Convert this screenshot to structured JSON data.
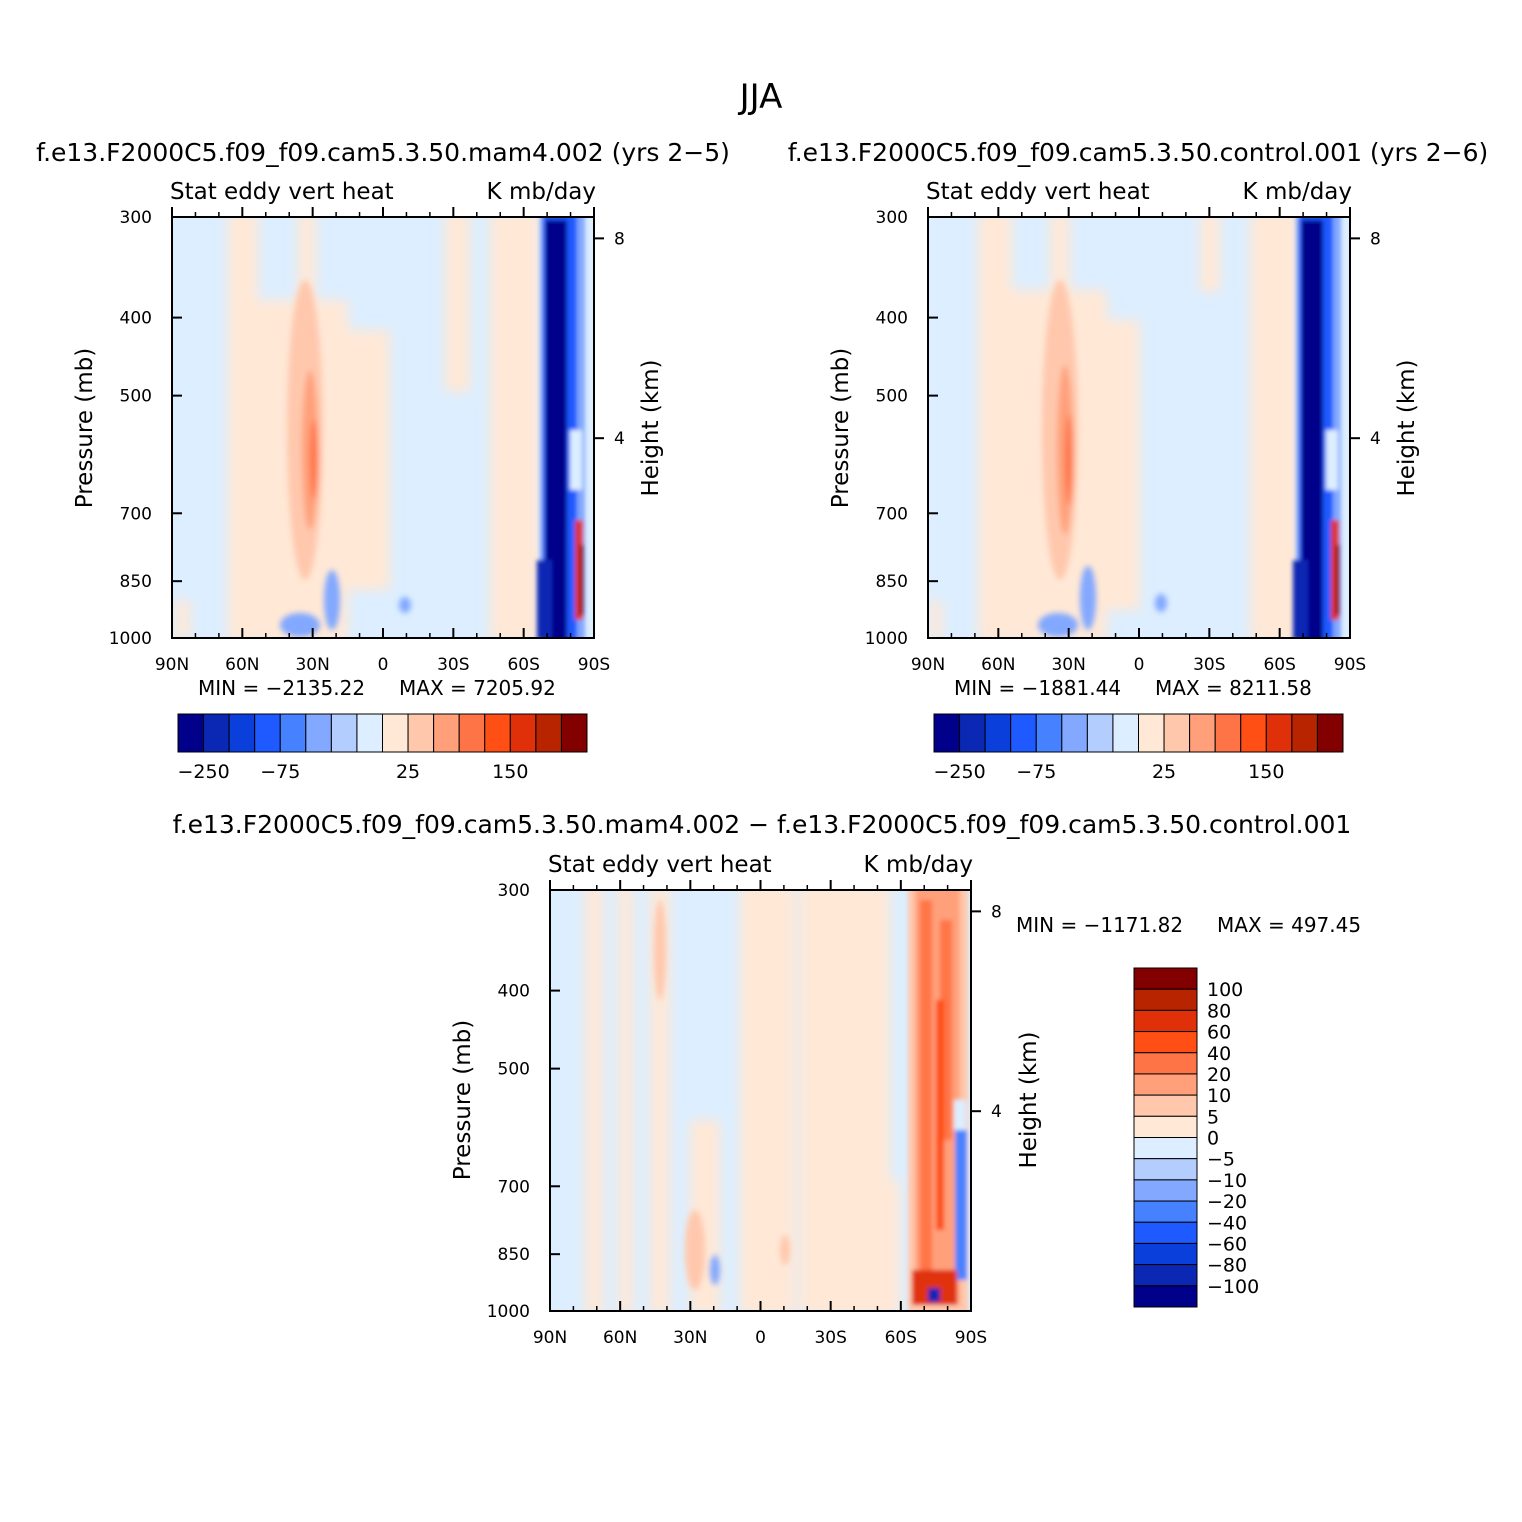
{
  "title": "JJA",
  "colors": {
    "sequential_palette": [
      "#00008b",
      "#0a28b4",
      "#0a3fdc",
      "#1e5aff",
      "#4682ff",
      "#82a8ff",
      "#b4cdff",
      "#dceeff",
      "#ffe8d6",
      "#ffc8ad",
      "#ffa07a",
      "#ff7446",
      "#ff4f14",
      "#e0300a",
      "#b82300",
      "#820000"
    ],
    "diff_palette": [
      "#00008b",
      "#0a28b4",
      "#0a3fdc",
      "#1e5aff",
      "#4682ff",
      "#82a8ff",
      "#b4cdff",
      "#dceeff",
      "#ffe8d6",
      "#ffc8ad",
      "#ffa07a",
      "#ff7446",
      "#ff4f14",
      "#e0300a",
      "#b82300",
      "#820000"
    ]
  },
  "chart_data": [
    {
      "type": "heatmap",
      "id": "top-left",
      "case": "f.e13.F2000C5.f09_f09.cam5.3.50.mam4.002  (yrs 2−5)",
      "left_title": "Stat  eddy  vert  heat",
      "right_title": "K  mb/day",
      "ylabel": "Pressure  (mb)",
      "y2label": "Height  (km)",
      "x_ticks": [
        "90N",
        "60N",
        "30N",
        "0",
        "30S",
        "60S",
        "90S"
      ],
      "y_ticks": [
        "300",
        "400",
        "500",
        "700",
        "850",
        "1000"
      ],
      "y2_ticks": [
        "8",
        "4"
      ],
      "min_label": "MIN  =  −2135.22",
      "max_label": "MAX  =  7205.92",
      "colorbar_labels": [
        "−250",
        "−75",
        "25",
        "150"
      ],
      "ylim": [
        300,
        1000
      ],
      "xlim": [
        90,
        -90
      ]
    },
    {
      "type": "heatmap",
      "id": "top-right",
      "case": "f.e13.F2000C5.f09_f09.cam5.3.50.control.001  (yrs 2−6)",
      "left_title": "Stat  eddy  vert  heat",
      "right_title": "K  mb/day",
      "ylabel": "Pressure  (mb)",
      "y2label": "Height  (km)",
      "x_ticks": [
        "90N",
        "60N",
        "30N",
        "0",
        "30S",
        "60S",
        "90S"
      ],
      "y_ticks": [
        "300",
        "400",
        "500",
        "700",
        "850",
        "1000"
      ],
      "y2_ticks": [
        "8",
        "4"
      ],
      "min_label": "MIN  =  −1881.44",
      "max_label": "MAX  =  8211.58",
      "colorbar_labels": [
        "−250",
        "−75",
        "25",
        "150"
      ],
      "ylim": [
        300,
        1000
      ],
      "xlim": [
        90,
        -90
      ]
    },
    {
      "type": "heatmap",
      "id": "bottom-diff",
      "case": "f.e13.F2000C5.f09_f09.cam5.3.50.mam4.002  −  f.e13.F2000C5.f09_f09.cam5.3.50.control.001",
      "left_title": "Stat  eddy  vert  heat",
      "right_title": "K  mb/day",
      "ylabel": "Pressure  (mb)",
      "y2label": "Height  (km)",
      "x_ticks": [
        "90N",
        "60N",
        "30N",
        "0",
        "30S",
        "60S",
        "90S"
      ],
      "y_ticks": [
        "300",
        "400",
        "500",
        "700",
        "850",
        "1000"
      ],
      "y2_ticks": [
        "8",
        "4"
      ],
      "min_label": "MIN  =  −1171.82",
      "max_label": "MAX  =  497.45",
      "colorbar_labels": [
        "100",
        "80",
        "60",
        "40",
        "20",
        "10",
        "5",
        "0",
        "−5",
        "−10",
        "−20",
        "−40",
        "−60",
        "−80",
        "−100"
      ],
      "ylim": [
        300,
        1000
      ],
      "xlim": [
        90,
        -90
      ]
    }
  ]
}
